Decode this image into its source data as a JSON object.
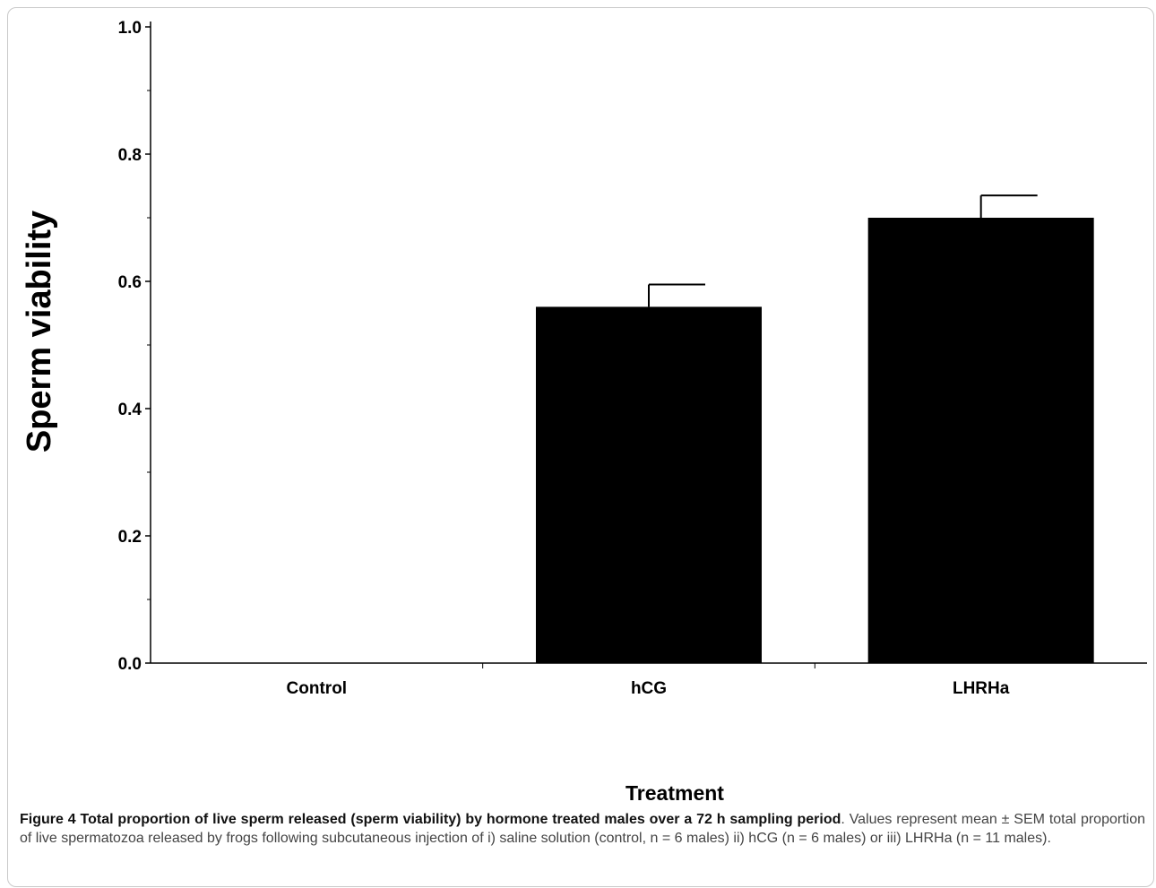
{
  "chart_data": {
    "type": "bar",
    "categories": [
      "Control",
      "hCG",
      "LHRHa"
    ],
    "values": [
      0.0,
      0.56,
      0.7
    ],
    "errors": [
      0.0,
      0.035,
      0.035
    ],
    "xlabel": "Treatment",
    "ylabel": "Sperm viability",
    "ylim": [
      0.0,
      1.0
    ],
    "yticks": [
      "0.0",
      "0.2",
      "0.4",
      "0.6",
      "0.8",
      "1.0"
    ],
    "grid": false,
    "bar_color": "#000000"
  },
  "caption": {
    "title": "Figure 4 Total proportion of live sperm released (sperm viability) by hormone treated males over a 72 h sampling period",
    "body": ". Values represent mean ± SEM total proportion of live spermatozoa released by frogs following subcutaneous injection of i) saline solution (control, n = 6 males) ii) hCG (n = 6 males) or iii) LHRHa (n = 11 males)."
  }
}
